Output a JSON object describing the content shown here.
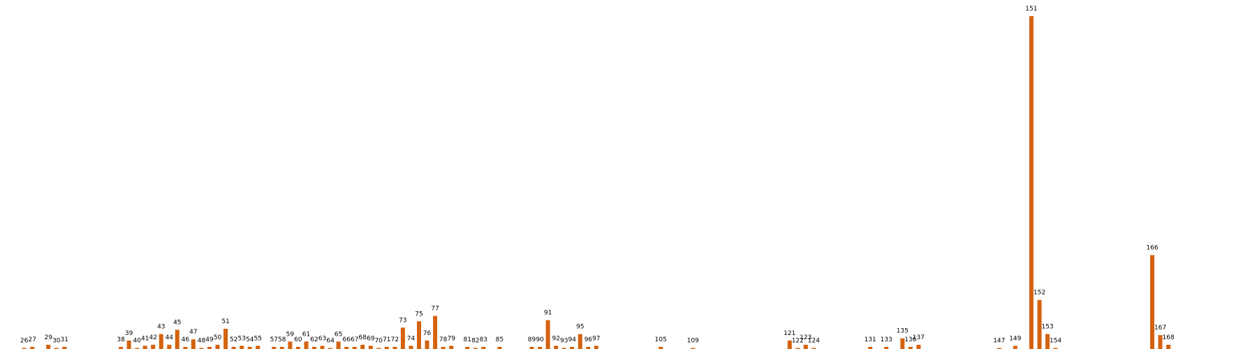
{
  "chart_data": {
    "type": "bar",
    "colors": {
      "bar": "#d4620f"
    },
    "grid": false,
    "legend": "none",
    "xlim": [
      23,
      179
    ],
    "ylim": [
      0,
      157
    ],
    "points": [
      {
        "x": 26,
        "y": 0.5
      },
      {
        "x": 27,
        "y": 1
      },
      {
        "x": 29,
        "y": 2
      },
      {
        "x": 30,
        "y": 0.5
      },
      {
        "x": 31,
        "y": 1
      },
      {
        "x": 38,
        "y": 1
      },
      {
        "x": 39,
        "y": 4
      },
      {
        "x": 40,
        "y": 0.5
      },
      {
        "x": 41,
        "y": 1.5
      },
      {
        "x": 42,
        "y": 2
      },
      {
        "x": 43,
        "y": 7
      },
      {
        "x": 44,
        "y": 2
      },
      {
        "x": 45,
        "y": 9
      },
      {
        "x": 46,
        "y": 1
      },
      {
        "x": 47,
        "y": 4.5
      },
      {
        "x": 48,
        "y": 0.5
      },
      {
        "x": 49,
        "y": 1
      },
      {
        "x": 50,
        "y": 2
      },
      {
        "x": 51,
        "y": 9.5
      },
      {
        "x": 52,
        "y": 1
      },
      {
        "x": 53,
        "y": 1.5
      },
      {
        "x": 54,
        "y": 1
      },
      {
        "x": 55,
        "y": 1.5
      },
      {
        "x": 57,
        "y": 1
      },
      {
        "x": 58,
        "y": 1
      },
      {
        "x": 59,
        "y": 3.5
      },
      {
        "x": 60,
        "y": 1
      },
      {
        "x": 61,
        "y": 3.5
      },
      {
        "x": 62,
        "y": 1
      },
      {
        "x": 63,
        "y": 1.5
      },
      {
        "x": 64,
        "y": 0.5
      },
      {
        "x": 65,
        "y": 3.5
      },
      {
        "x": 66,
        "y": 1
      },
      {
        "x": 67,
        "y": 1
      },
      {
        "x": 68,
        "y": 2
      },
      {
        "x": 69,
        "y": 1.5
      },
      {
        "x": 70,
        "y": 0.5
      },
      {
        "x": 71,
        "y": 1
      },
      {
        "x": 72,
        "y": 1
      },
      {
        "x": 73,
        "y": 10
      },
      {
        "x": 74,
        "y": 1.5
      },
      {
        "x": 75,
        "y": 13
      },
      {
        "x": 76,
        "y": 4
      },
      {
        "x": 77,
        "y": 15.5
      },
      {
        "x": 78,
        "y": 1
      },
      {
        "x": 79,
        "y": 1.5
      },
      {
        "x": 81,
        "y": 1
      },
      {
        "x": 82,
        "y": 0.5
      },
      {
        "x": 83,
        "y": 1
      },
      {
        "x": 85,
        "y": 1
      },
      {
        "x": 89,
        "y": 1
      },
      {
        "x": 90,
        "y": 1
      },
      {
        "x": 91,
        "y": 13.5
      },
      {
        "x": 92,
        "y": 1.5
      },
      {
        "x": 93,
        "y": 0.5
      },
      {
        "x": 94,
        "y": 1
      },
      {
        "x": 95,
        "y": 7
      },
      {
        "x": 96,
        "y": 1
      },
      {
        "x": 97,
        "y": 1.5
      },
      {
        "x": 105,
        "y": 1
      },
      {
        "x": 109,
        "y": 0.5
      },
      {
        "x": 121,
        "y": 4
      },
      {
        "x": 122,
        "y": 0.5
      },
      {
        "x": 123,
        "y": 2
      },
      {
        "x": 124,
        "y": 0.5
      },
      {
        "x": 131,
        "y": 1
      },
      {
        "x": 133,
        "y": 1
      },
      {
        "x": 135,
        "y": 5
      },
      {
        "x": 136,
        "y": 1
      },
      {
        "x": 137,
        "y": 2
      },
      {
        "x": 147,
        "y": 0.5
      },
      {
        "x": 149,
        "y": 1.5
      },
      {
        "x": 151,
        "y": 156
      },
      {
        "x": 152,
        "y": 23
      },
      {
        "x": 153,
        "y": 7
      },
      {
        "x": 154,
        "y": 0.5
      },
      {
        "x": 166,
        "y": 44
      },
      {
        "x": 167,
        "y": 6.5
      },
      {
        "x": 168,
        "y": 2
      }
    ]
  }
}
